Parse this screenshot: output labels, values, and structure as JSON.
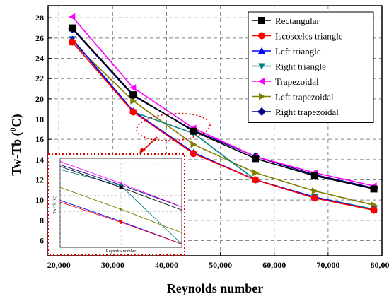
{
  "chart_data": {
    "type": "line",
    "title": "",
    "xlabel": "Reynolds number",
    "ylabel": "Tw-Tb (",
    "ylabel_sup": "0",
    "ylabel_tail": "C)",
    "xlim": [
      18000,
      80000
    ],
    "ylim": [
      4.5,
      29.2
    ],
    "xticks": [
      20000,
      30000,
      40000,
      50000,
      60000,
      70000,
      80000
    ],
    "xtick_labels": [
      "20,000",
      "30,000",
      "40,000",
      "50,000",
      "60,000",
      "70,000",
      "80,000"
    ],
    "yticks": [
      6,
      8,
      10,
      12,
      14,
      16,
      18,
      20,
      22,
      24,
      26,
      28
    ],
    "ytick_labels": [
      "6",
      "8",
      "10",
      "12",
      "14",
      "16",
      "18",
      "20",
      "22",
      "24",
      "26",
      "28"
    ],
    "x": [
      22500,
      33800,
      45000,
      56500,
      67500,
      78500
    ],
    "series": [
      {
        "name": "Rectangular",
        "color": "#000000",
        "marker": "square",
        "values": [
          27.0,
          20.4,
          16.8,
          14.1,
          12.4,
          11.1
        ]
      },
      {
        "name": "Iscosceles triangle",
        "color": "#ff0000",
        "marker": "circle",
        "values": [
          25.6,
          18.7,
          14.6,
          12.0,
          10.2,
          9.0
        ]
      },
      {
        "name": "Left triangle",
        "color": "#0000ff",
        "marker": "triangle-up",
        "values": [
          25.9,
          18.8,
          14.7,
          12.0,
          10.3,
          9.0
        ]
      },
      {
        "name": "Right triangle",
        "color": "#008080",
        "marker": "triangle-down",
        "values": [
          25.9,
          18.7,
          16.6,
          12.0,
          10.3,
          9.1
        ]
      },
      {
        "name": "Trapezoidal",
        "color": "#ff00ff",
        "marker": "triangle-left",
        "values": [
          28.1,
          21.1,
          17.1,
          14.3,
          12.7,
          11.4
        ]
      },
      {
        "name": "Left trapezoidal",
        "color": "#808000",
        "marker": "triangle-right",
        "values": [
          25.6,
          19.8,
          15.5,
          12.7,
          10.9,
          9.5
        ]
      },
      {
        "name": "Right trapezoidal",
        "color": "#000080",
        "marker": "diamond",
        "values": [
          26.9,
          20.3,
          16.9,
          14.3,
          12.5,
          11.2
        ]
      }
    ],
    "legend_position": "top-right",
    "inset": {
      "ylabel": "Tw-Tb (C)",
      "xlabel": "Reynolds number"
    }
  }
}
